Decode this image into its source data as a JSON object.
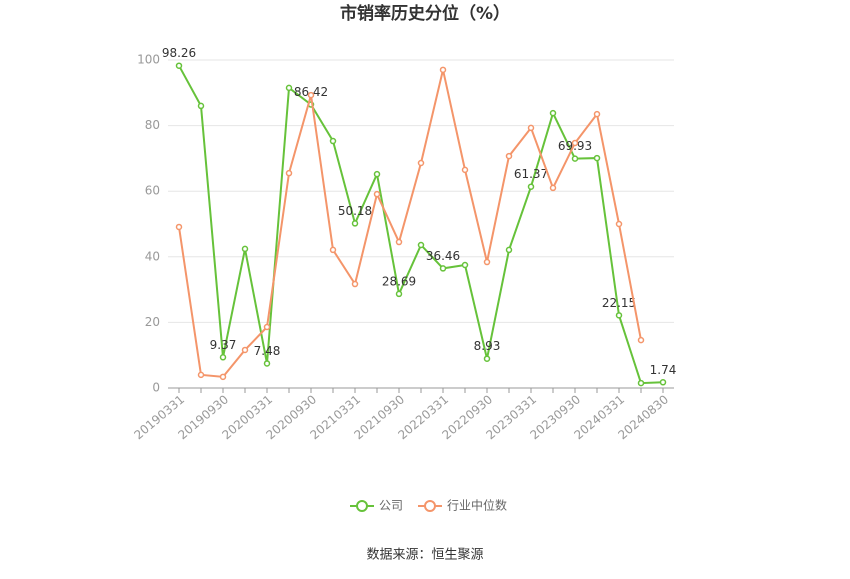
{
  "chart_data": {
    "type": "line",
    "title": "市销率历史分位（%）",
    "categories": [
      "20190331",
      null,
      "20190930",
      null,
      "20200331",
      null,
      "20200930",
      null,
      "20210331",
      null,
      "20210930",
      null,
      "20220331",
      null,
      "20220930",
      null,
      "20230331",
      null,
      "20230930",
      null,
      "20240331",
      null,
      "20240830"
    ],
    "series": [
      {
        "name": "公司",
        "color": "#66c23a",
        "values": [
          98.26,
          86.0,
          9.37,
          42.4,
          7.48,
          91.5,
          86.42,
          75.3,
          50.18,
          65.2,
          28.69,
          43.6,
          36.46,
          37.5,
          8.93,
          42.1,
          61.37,
          83.8,
          69.93,
          70.1,
          22.15,
          1.5,
          1.74
        ],
        "value_labels": [
          "98.26",
          null,
          "9.37",
          null,
          "7.48",
          null,
          "86.42",
          null,
          "50.18",
          null,
          "28.69",
          null,
          "36.46",
          null,
          "8.93",
          null,
          "61.37",
          null,
          "69.93",
          null,
          "22.15",
          null,
          "1.74"
        ]
      },
      {
        "name": "行业中位数",
        "color": "#f4956a",
        "values": [
          49.1,
          4.0,
          3.4,
          11.6,
          18.6,
          65.5,
          89.3,
          42.1,
          31.7,
          59.1,
          44.5,
          68.6,
          97.0,
          66.5,
          38.4,
          70.7,
          79.3,
          61.0,
          74.7,
          83.5,
          50.0,
          14.6,
          null
        ]
      }
    ],
    "ylim": [
      0,
      100
    ],
    "yticks": [
      0,
      20,
      40,
      60,
      80,
      100
    ],
    "grid": true,
    "source": "数据来源：恒生聚源"
  }
}
